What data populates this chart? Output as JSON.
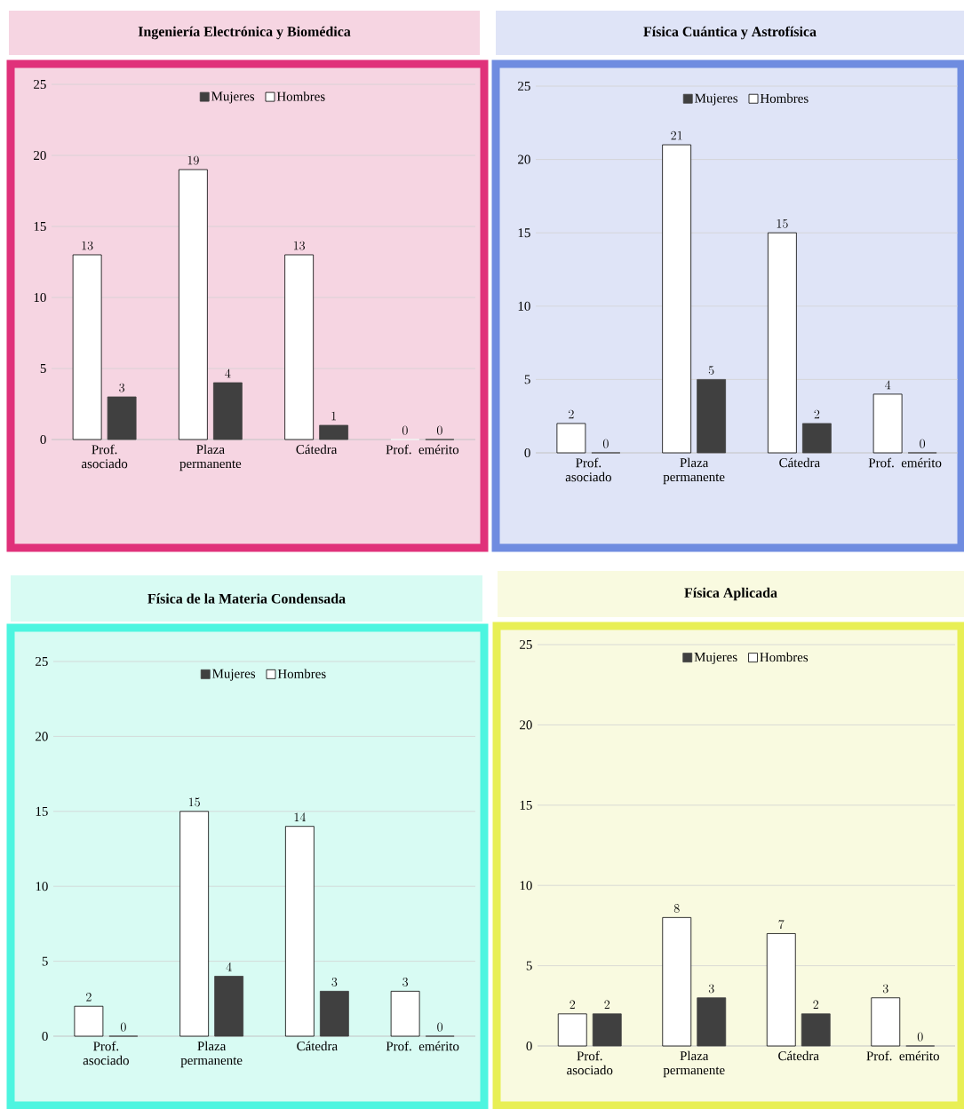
{
  "chart_data": [
    {
      "type": "bar",
      "title": "Ingeniería Electrónica y Biomédica",
      "categories": [
        "Prof. asociado",
        "Plaza permanente",
        "Cátedra",
        "Prof. emérito"
      ],
      "series": [
        {
          "name": "Hombres",
          "color": "#ffffff",
          "values": [
            13,
            19,
            13,
            0
          ]
        },
        {
          "name": "Mujeres",
          "color": "#404040",
          "values": [
            3,
            4,
            1,
            0
          ]
        }
      ],
      "ylim": [
        0,
        25
      ],
      "yticks": [
        0,
        5,
        10,
        15,
        20,
        25
      ],
      "grid": "y",
      "legend": "top",
      "data_labels": true
    },
    {
      "type": "bar",
      "title": "Física Cuántica y Astrofísica",
      "categories": [
        "Prof. asociado",
        "Plaza permanente",
        "Cátedra",
        "Prof. emérito"
      ],
      "series": [
        {
          "name": "Hombres",
          "color": "#ffffff",
          "values": [
            2,
            21,
            15,
            4
          ]
        },
        {
          "name": "Mujeres",
          "color": "#404040",
          "values": [
            0,
            5,
            2,
            0
          ]
        }
      ],
      "ylim": [
        0,
        25
      ],
      "yticks": [
        0,
        5,
        10,
        15,
        20,
        25
      ],
      "grid": "y",
      "legend": "top",
      "data_labels": true
    },
    {
      "type": "bar",
      "title": "Física de la Materia Condensada",
      "categories": [
        "Prof. asociado",
        "Plaza permanente",
        "Cátedra",
        "Prof. emérito"
      ],
      "series": [
        {
          "name": "Hombres",
          "color": "#ffffff",
          "values": [
            2,
            15,
            14,
            3
          ]
        },
        {
          "name": "Mujeres",
          "color": "#404040",
          "values": [
            0,
            4,
            3,
            0
          ]
        }
      ],
      "ylim": [
        0,
        25
      ],
      "yticks": [
        0,
        5,
        10,
        15,
        20,
        25
      ],
      "grid": "y",
      "legend": "top",
      "data_labels": true
    },
    {
      "type": "bar",
      "title": "Física Aplicada",
      "categories": [
        "Prof. asociado",
        "Plaza permanente",
        "Cátedra",
        "Prof. emérito"
      ],
      "series": [
        {
          "name": "Hombres",
          "color": "#ffffff",
          "values": [
            2,
            8,
            7,
            3
          ]
        },
        {
          "name": "Mujeres",
          "color": "#404040",
          "values": [
            2,
            3,
            2,
            0
          ]
        }
      ],
      "ylim": [
        0,
        25
      ],
      "yticks": [
        0,
        5,
        10,
        15,
        20,
        25
      ],
      "grid": "y",
      "legend": "top",
      "data_labels": true
    }
  ]
}
